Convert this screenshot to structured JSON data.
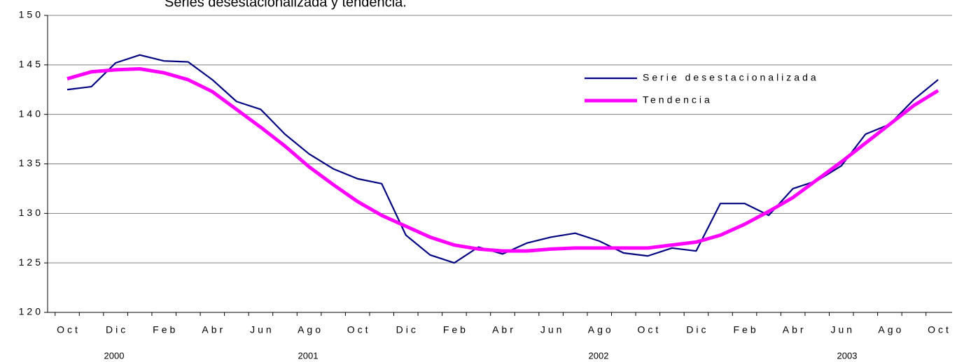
{
  "chart_data": {
    "type": "line",
    "title": "Series desestacionalizada y tendencia.",
    "categories": [
      "Oct",
      null,
      "Dic",
      null,
      "Feb",
      null,
      "Abr",
      null,
      "Jun",
      null,
      "Ago",
      null,
      "Oct",
      null,
      "Dic",
      null,
      "Feb",
      null,
      "Abr",
      null,
      "Jun",
      null,
      "Ago",
      null,
      "Oct",
      null,
      "Dic",
      null,
      "Feb",
      null,
      "Abr",
      null,
      "Jun",
      null,
      "Ago",
      null,
      "Oct"
    ],
    "year_labels": [
      "2000",
      "2001",
      "2002",
      "2003"
    ],
    "series": [
      {
        "name": "Serie desestacionalizada",
        "color": "#000080",
        "values": [
          142.5,
          142.8,
          145.2,
          146.0,
          145.4,
          145.3,
          143.5,
          141.3,
          140.5,
          138.0,
          136.0,
          134.5,
          133.5,
          133.0,
          127.8,
          125.8,
          125.0,
          126.6,
          125.9,
          127.0,
          127.6,
          128.0,
          127.2,
          126.0,
          125.7,
          126.5,
          126.2,
          131.0,
          131.0,
          129.8,
          132.5,
          133.3,
          134.8,
          138.0,
          139.0,
          141.5,
          143.5
        ]
      },
      {
        "name": "Tendencia",
        "color": "#ff00ff",
        "values": [
          143.6,
          144.3,
          144.5,
          144.6,
          144.2,
          143.5,
          142.3,
          140.5,
          138.7,
          136.8,
          134.7,
          132.9,
          131.2,
          129.8,
          128.7,
          127.6,
          126.8,
          126.4,
          126.2,
          126.2,
          126.4,
          126.5,
          126.5,
          126.5,
          126.5,
          126.8,
          127.1,
          127.8,
          128.9,
          130.2,
          131.6,
          133.4,
          135.2,
          137.1,
          139.0,
          140.9,
          142.4
        ]
      }
    ],
    "ylim": [
      120,
      150
    ],
    "yticks": [
      120,
      125,
      130,
      135,
      140,
      145,
      150
    ],
    "grid": true,
    "legend": "upper-right"
  }
}
